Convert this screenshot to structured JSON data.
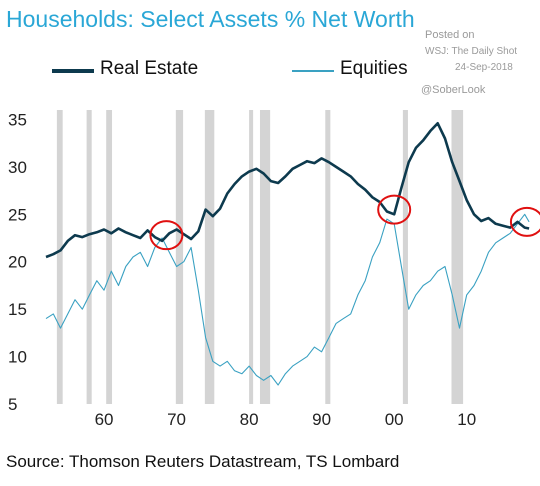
{
  "chart_data": {
    "type": "line",
    "title": "Households: Select Assets % Net Worth",
    "xlabel": "",
    "ylabel": "",
    "xlim": [
      1952,
      2019
    ],
    "ylim": [
      5,
      36
    ],
    "x_ticks": [
      {
        "value": 1960,
        "label": "60"
      },
      {
        "value": 1970,
        "label": "70"
      },
      {
        "value": 1980,
        "label": "80"
      },
      {
        "value": 1990,
        "label": "90"
      },
      {
        "value": 2000,
        "label": "00"
      },
      {
        "value": 2010,
        "label": "10"
      }
    ],
    "y_ticks": [
      5,
      10,
      15,
      20,
      25,
      30,
      35
    ],
    "grid": false,
    "legend_position": "top",
    "recessions": [
      [
        1953.5,
        1954.3
      ],
      [
        1957.6,
        1958.3
      ],
      [
        1960.3,
        1961.1
      ],
      [
        1969.9,
        1970.9
      ],
      [
        1973.9,
        1975.2
      ],
      [
        1980.0,
        1980.5
      ],
      [
        1981.5,
        1982.9
      ],
      [
        1990.5,
        1991.2
      ],
      [
        2001.2,
        2001.9
      ],
      [
        2007.9,
        2009.5
      ]
    ],
    "annotations": [
      {
        "type": "circle",
        "x": 1968.6,
        "y": 22.8
      },
      {
        "type": "circle",
        "x": 2000.0,
        "y": 25.5
      },
      {
        "type": "circle",
        "x": 2018.3,
        "y": 24.2
      }
    ],
    "series": [
      {
        "name": "Real Estate",
        "color": "#0d3a4e",
        "points": [
          [
            1952.0,
            20.5
          ],
          [
            1953.0,
            20.8
          ],
          [
            1954.0,
            21.2
          ],
          [
            1955.0,
            22.2
          ],
          [
            1956.0,
            22.8
          ],
          [
            1957.0,
            22.6
          ],
          [
            1958.0,
            22.9
          ],
          [
            1959.0,
            23.1
          ],
          [
            1960.0,
            23.4
          ],
          [
            1961.0,
            23.0
          ],
          [
            1962.0,
            23.5
          ],
          [
            1963.0,
            23.1
          ],
          [
            1964.0,
            22.8
          ],
          [
            1965.0,
            22.5
          ],
          [
            1966.0,
            23.3
          ],
          [
            1967.0,
            22.6
          ],
          [
            1968.0,
            22.2
          ],
          [
            1969.0,
            23.0
          ],
          [
            1970.0,
            23.4
          ],
          [
            1971.0,
            22.9
          ],
          [
            1972.0,
            22.4
          ],
          [
            1973.0,
            23.2
          ],
          [
            1974.0,
            25.5
          ],
          [
            1975.0,
            24.8
          ],
          [
            1976.0,
            25.6
          ],
          [
            1977.0,
            27.2
          ],
          [
            1978.0,
            28.2
          ],
          [
            1979.0,
            29.0
          ],
          [
            1980.0,
            29.5
          ],
          [
            1981.0,
            29.8
          ],
          [
            1982.0,
            29.3
          ],
          [
            1983.0,
            28.5
          ],
          [
            1984.0,
            28.3
          ],
          [
            1985.0,
            29.0
          ],
          [
            1986.0,
            29.8
          ],
          [
            1987.0,
            30.2
          ],
          [
            1988.0,
            30.6
          ],
          [
            1989.0,
            30.4
          ],
          [
            1990.0,
            30.9
          ],
          [
            1991.0,
            30.5
          ],
          [
            1992.0,
            30.0
          ],
          [
            1993.0,
            29.5
          ],
          [
            1994.0,
            29.0
          ],
          [
            1995.0,
            28.2
          ],
          [
            1996.0,
            27.6
          ],
          [
            1997.0,
            26.8
          ],
          [
            1998.0,
            26.3
          ],
          [
            1999.0,
            25.3
          ],
          [
            2000.0,
            25.0
          ],
          [
            2001.0,
            27.8
          ],
          [
            2002.0,
            30.5
          ],
          [
            2003.0,
            32.0
          ],
          [
            2004.0,
            32.8
          ],
          [
            2005.0,
            33.8
          ],
          [
            2006.0,
            34.6
          ],
          [
            2007.0,
            33.0
          ],
          [
            2008.0,
            30.5
          ],
          [
            2009.0,
            28.5
          ],
          [
            2010.0,
            26.5
          ],
          [
            2011.0,
            25.0
          ],
          [
            2012.0,
            24.3
          ],
          [
            2013.0,
            24.6
          ],
          [
            2014.0,
            24.0
          ],
          [
            2015.0,
            23.8
          ],
          [
            2016.0,
            23.6
          ],
          [
            2017.0,
            24.2
          ],
          [
            2018.0,
            23.6
          ],
          [
            2018.6,
            23.5
          ]
        ]
      },
      {
        "name": "Equities",
        "color": "#3aa1c2",
        "points": [
          [
            1952.0,
            14.0
          ],
          [
            1953.0,
            14.5
          ],
          [
            1954.0,
            13.0
          ],
          [
            1955.0,
            14.5
          ],
          [
            1956.0,
            16.0
          ],
          [
            1957.0,
            15.0
          ],
          [
            1958.0,
            16.5
          ],
          [
            1959.0,
            18.0
          ],
          [
            1960.0,
            17.0
          ],
          [
            1961.0,
            19.0
          ],
          [
            1962.0,
            17.5
          ],
          [
            1963.0,
            19.5
          ],
          [
            1964.0,
            20.5
          ],
          [
            1965.0,
            21.0
          ],
          [
            1966.0,
            19.5
          ],
          [
            1967.0,
            21.5
          ],
          [
            1968.0,
            22.5
          ],
          [
            1969.0,
            21.0
          ],
          [
            1970.0,
            19.5
          ],
          [
            1971.0,
            20.0
          ],
          [
            1972.0,
            21.5
          ],
          [
            1973.0,
            17.0
          ],
          [
            1974.0,
            12.0
          ],
          [
            1975.0,
            9.5
          ],
          [
            1976.0,
            9.0
          ],
          [
            1977.0,
            9.5
          ],
          [
            1978.0,
            8.5
          ],
          [
            1979.0,
            8.2
          ],
          [
            1980.0,
            9.0
          ],
          [
            1981.0,
            8.0
          ],
          [
            1982.0,
            7.5
          ],
          [
            1983.0,
            8.0
          ],
          [
            1984.0,
            7.0
          ],
          [
            1985.0,
            8.2
          ],
          [
            1986.0,
            9.0
          ],
          [
            1987.0,
            9.5
          ],
          [
            1988.0,
            10.0
          ],
          [
            1989.0,
            11.0
          ],
          [
            1990.0,
            10.5
          ],
          [
            1991.0,
            12.0
          ],
          [
            1992.0,
            13.5
          ],
          [
            1993.0,
            14.0
          ],
          [
            1994.0,
            14.5
          ],
          [
            1995.0,
            16.5
          ],
          [
            1996.0,
            18.0
          ],
          [
            1997.0,
            20.5
          ],
          [
            1998.0,
            22.0
          ],
          [
            1999.0,
            24.5
          ],
          [
            2000.0,
            24.0
          ],
          [
            2001.0,
            19.5
          ],
          [
            2002.0,
            15.0
          ],
          [
            2003.0,
            16.5
          ],
          [
            2004.0,
            17.5
          ],
          [
            2005.0,
            18.0
          ],
          [
            2006.0,
            19.0
          ],
          [
            2007.0,
            19.5
          ],
          [
            2008.0,
            16.5
          ],
          [
            2009.0,
            13.0
          ],
          [
            2010.0,
            16.5
          ],
          [
            2011.0,
            17.5
          ],
          [
            2012.0,
            19.0
          ],
          [
            2013.0,
            21.0
          ],
          [
            2014.0,
            22.0
          ],
          [
            2015.0,
            22.5
          ],
          [
            2016.0,
            23.0
          ],
          [
            2017.0,
            24.0
          ],
          [
            2018.0,
            25.0
          ],
          [
            2018.6,
            24.2
          ]
        ]
      }
    ]
  },
  "watermark": {
    "posted_on": "Posted on",
    "source_site": "WSJ: The Daily Shot",
    "date": "24-Sep-2018",
    "handle": "@SoberLook"
  },
  "source_note": "Source: Thomson Reuters Datastream, TS Lombard",
  "colors": {
    "title": "#2aa7d6",
    "recession_band": "#d4d4d4",
    "annotation": "#e01010"
  }
}
